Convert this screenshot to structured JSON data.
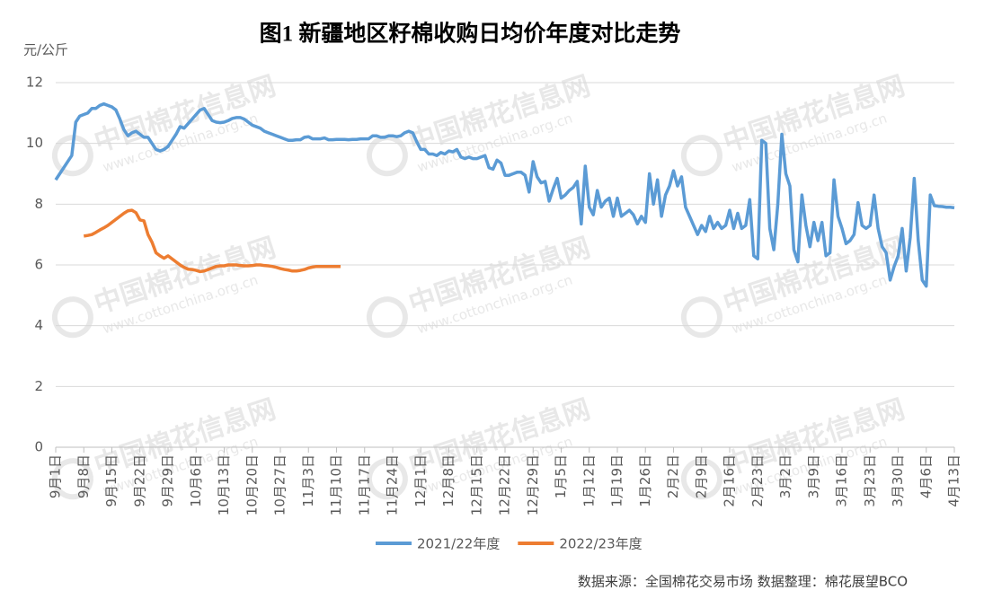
{
  "chart_data": {
    "type": "line",
    "title": "图1  新疆地区籽棉收购日均价年度对比走势",
    "y_axis_label": "元/公斤",
    "source": "数据来源：全国棉花交易市场  数据整理：棉花展望BCO",
    "watermark": {
      "name": "中国棉花信息网",
      "url": "www.cottonchina.org.cn"
    },
    "ylim": [
      0,
      12
    ],
    "yticks": [
      0,
      2,
      4,
      6,
      8,
      10,
      12
    ],
    "grid": true,
    "legend": "bottom",
    "categories": [
      "9月1日",
      null,
      null,
      null,
      null,
      null,
      null,
      "9月8日",
      null,
      null,
      null,
      null,
      null,
      null,
      "9月15日",
      null,
      null,
      null,
      null,
      null,
      null,
      "9月22日",
      null,
      null,
      null,
      null,
      null,
      null,
      "9月29日",
      null,
      null,
      null,
      null,
      null,
      null,
      "10月6日",
      null,
      null,
      null,
      null,
      null,
      null,
      "10月13日",
      null,
      null,
      null,
      null,
      null,
      null,
      "10月20日",
      null,
      null,
      null,
      null,
      null,
      null,
      "10月27日",
      null,
      null,
      null,
      null,
      null,
      null,
      "11月3日",
      null,
      null,
      null,
      null,
      null,
      null,
      "11月10日",
      null,
      null,
      null,
      null,
      null,
      null,
      "11月17日",
      null,
      null,
      null,
      null,
      null,
      null,
      "11月24日",
      null,
      null,
      null,
      null,
      null,
      null,
      "12月1日",
      null,
      null,
      null,
      null,
      null,
      null,
      "12月8日",
      null,
      null,
      null,
      null,
      null,
      null,
      "12月15日",
      null,
      null,
      null,
      null,
      null,
      null,
      "12月22日",
      null,
      null,
      null,
      null,
      null,
      null,
      "12月29日",
      null,
      null,
      null,
      null,
      null,
      null,
      "1月5日",
      null,
      null,
      null,
      null,
      null,
      null,
      "1月12日",
      null,
      null,
      null,
      null,
      null,
      null,
      "1月19日",
      null,
      null,
      null,
      null,
      null,
      null,
      "1月26日",
      null,
      null,
      null,
      null,
      null,
      null,
      "2月2日",
      null,
      null,
      null,
      null,
      null,
      null,
      "2月9日",
      null,
      null,
      null,
      null,
      null,
      null,
      "2月16日",
      null,
      null,
      null,
      null,
      null,
      null,
      "2月23日",
      null,
      null,
      null,
      null,
      null,
      null,
      "3月2日",
      null,
      null,
      null,
      null,
      null,
      null,
      "3月9日",
      null,
      null,
      null,
      null,
      null,
      null,
      "3月16日",
      null,
      null,
      null,
      null,
      null,
      null,
      "3月23日",
      null,
      null,
      null,
      null,
      null,
      null,
      "3月30日",
      null,
      null,
      null,
      null,
      null,
      null,
      "4月6日",
      null,
      null,
      null,
      null,
      null,
      null,
      "4月13日"
    ],
    "series": [
      {
        "name": "2021/22年度",
        "color": "#5b9bd5",
        "values": [
          8.8,
          9.0,
          9.2,
          9.4,
          9.6,
          10.7,
          10.9,
          10.95,
          11.0,
          11.15,
          11.15,
          11.25,
          11.3,
          11.25,
          11.2,
          11.1,
          10.8,
          10.45,
          10.25,
          10.35,
          10.4,
          10.3,
          10.2,
          10.2,
          10.0,
          9.8,
          9.75,
          9.8,
          9.9,
          10.1,
          10.3,
          10.55,
          10.5,
          10.65,
          10.8,
          10.95,
          11.1,
          11.15,
          10.95,
          10.75,
          10.7,
          10.68,
          10.7,
          10.75,
          10.82,
          10.85,
          10.85,
          10.8,
          10.7,
          10.6,
          10.55,
          10.5,
          10.4,
          10.35,
          10.3,
          10.25,
          10.2,
          10.15,
          10.1,
          10.1,
          10.12,
          10.12,
          10.2,
          10.22,
          10.15,
          10.15,
          10.15,
          10.18,
          10.12,
          10.12,
          10.13,
          10.13,
          10.13,
          10.12,
          10.13,
          10.13,
          10.15,
          10.15,
          10.15,
          10.25,
          10.25,
          10.2,
          10.2,
          10.25,
          10.25,
          10.22,
          10.25,
          10.35,
          10.4,
          10.35,
          10.05,
          9.8,
          9.8,
          9.65,
          9.65,
          9.6,
          9.7,
          9.65,
          9.75,
          9.72,
          9.8,
          9.55,
          9.5,
          9.55,
          9.5,
          9.5,
          9.55,
          9.6,
          9.2,
          9.15,
          9.45,
          9.35,
          8.95,
          8.95,
          9.0,
          9.05,
          9.05,
          8.95,
          8.4,
          9.4,
          8.9,
          8.7,
          8.75,
          8.1,
          8.5,
          8.85,
          8.2,
          8.3,
          8.45,
          8.55,
          8.75,
          7.35,
          9.25,
          7.9,
          7.65,
          8.45,
          7.9,
          8.1,
          8.2,
          7.6,
          8.2,
          7.6,
          7.7,
          7.8,
          7.65,
          7.35,
          7.6,
          7.4,
          9.0,
          8.0,
          8.8,
          7.6,
          8.3,
          8.6,
          9.1,
          8.6,
          8.9,
          7.9,
          7.6,
          7.3,
          7.0,
          7.3,
          7.1,
          7.6,
          7.2,
          7.4,
          7.2,
          7.3,
          7.8,
          7.2,
          7.7,
          7.2,
          7.3,
          8.15,
          6.3,
          6.2,
          10.1,
          10.0,
          7.2,
          6.5,
          8.0,
          10.3,
          9.0,
          8.6,
          6.5,
          6.1,
          8.3,
          7.3,
          6.6,
          7.4,
          6.8,
          7.4,
          6.3,
          6.4,
          8.8,
          7.6,
          7.2,
          6.7,
          6.8,
          7.0,
          8.05,
          7.3,
          7.2,
          7.3,
          8.3,
          7.2,
          6.6,
          6.4,
          5.5,
          5.95,
          6.3,
          7.2,
          5.8,
          6.9,
          8.85,
          6.8,
          5.5,
          5.3,
          8.3,
          7.95,
          7.93,
          7.92,
          7.9,
          7.9,
          7.88
        ]
      },
      {
        "name": "2022/23年度",
        "color": "#ed7d31",
        "values": [
          null,
          null,
          null,
          null,
          null,
          null,
          null,
          6.95,
          6.97,
          7.0,
          7.07,
          7.15,
          7.22,
          7.3,
          7.4,
          7.5,
          7.6,
          7.7,
          7.78,
          7.8,
          7.72,
          7.48,
          7.45,
          7.0,
          6.75,
          6.4,
          6.3,
          6.22,
          6.3,
          6.2,
          6.1,
          6.0,
          5.92,
          5.86,
          5.85,
          5.82,
          5.78,
          5.8,
          5.85,
          5.9,
          5.95,
          5.97,
          5.97,
          6.0,
          6.0,
          6.0,
          5.98,
          5.97,
          5.97,
          5.98,
          6.0,
          6.0,
          5.98,
          5.97,
          5.95,
          5.92,
          5.88,
          5.85,
          5.83,
          5.8,
          5.8,
          5.82,
          5.85,
          5.9,
          5.93,
          5.95,
          5.95,
          5.95,
          5.95,
          5.95,
          5.95,
          5.95,
          null,
          null,
          null,
          null,
          null,
          null,
          null,
          null,
          null,
          null,
          null,
          null,
          null,
          null,
          null,
          null,
          null,
          null,
          null,
          null,
          null,
          null,
          null,
          null,
          null,
          null,
          null,
          null,
          null,
          null,
          null,
          null,
          null,
          null,
          null,
          null,
          null,
          null,
          null,
          null,
          null,
          null,
          null,
          null,
          null,
          null,
          null,
          null,
          null,
          null,
          null,
          null,
          null,
          null,
          null,
          null,
          null,
          null,
          null,
          null,
          null,
          null,
          null,
          null,
          null,
          null,
          null,
          null,
          null,
          null,
          null,
          null,
          null,
          null,
          null,
          null,
          null,
          null,
          null,
          null,
          null,
          null,
          null,
          null,
          null,
          null,
          null,
          null,
          null,
          null,
          null,
          null,
          null,
          null,
          null,
          null,
          null,
          null,
          null,
          null,
          null,
          null,
          null,
          null,
          null,
          null,
          null,
          null,
          null,
          null,
          null,
          null,
          null,
          null,
          null,
          null,
          null,
          null,
          null,
          null,
          null,
          null,
          null,
          null,
          null,
          null,
          null,
          null,
          null,
          null,
          null,
          null,
          null,
          null,
          null,
          null,
          null,
          null,
          null,
          null,
          null,
          null,
          null,
          null,
          null,
          null,
          null,
          null,
          null,
          null,
          null,
          null,
          null
        ]
      }
    ]
  }
}
